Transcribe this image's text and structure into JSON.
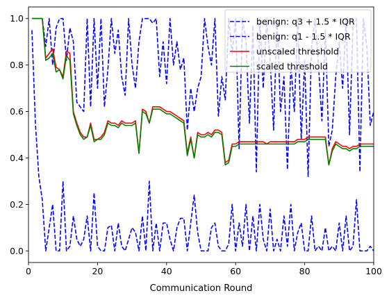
{
  "chart_data": {
    "type": "line",
    "title": "",
    "xlabel": "Communication Round",
    "ylabel": "",
    "xlim": [
      0,
      100
    ],
    "ylim": [
      -0.05,
      1.05
    ],
    "xticks": [
      0,
      20,
      40,
      60,
      80,
      100
    ],
    "yticks": [
      0.0,
      0.2,
      0.4,
      0.6,
      0.8,
      1.0
    ],
    "xtick_labels": [
      "0",
      "20",
      "40",
      "60",
      "80",
      "100"
    ],
    "ytick_labels": [
      "0.0",
      "0.2",
      "0.4",
      "0.6",
      "0.8",
      "1.0"
    ],
    "legend_position": "top-right",
    "grid": false,
    "x": [
      1,
      2,
      3,
      4,
      5,
      6,
      7,
      8,
      9,
      10,
      11,
      12,
      13,
      14,
      15,
      16,
      17,
      18,
      19,
      20,
      21,
      22,
      23,
      24,
      25,
      26,
      27,
      28,
      29,
      30,
      31,
      32,
      33,
      34,
      35,
      36,
      37,
      38,
      39,
      40,
      41,
      42,
      43,
      44,
      45,
      46,
      47,
      48,
      49,
      50,
      51,
      52,
      53,
      54,
      55,
      56,
      57,
      58,
      59,
      60,
      61,
      62,
      63,
      64,
      65,
      66,
      67,
      68,
      69,
      70,
      71,
      72,
      73,
      74,
      75,
      76,
      77,
      78,
      79,
      80,
      81,
      82,
      83,
      84,
      85,
      86,
      87,
      88,
      89,
      90,
      91,
      92,
      93,
      94,
      95,
      96,
      97,
      98,
      99,
      100
    ],
    "series": [
      {
        "name": "benign: q3 + 1.5 * IQR",
        "color": "#0000ff",
        "style": "dashed",
        "values": [
          1.0,
          1.0,
          1.0,
          1.0,
          0.88,
          1.0,
          0.8,
          0.96,
          1.0,
          1.0,
          0.82,
          0.96,
          0.9,
          0.64,
          0.62,
          0.6,
          1.0,
          0.62,
          1.0,
          0.7,
          1.0,
          0.62,
          0.78,
          1.0,
          0.85,
          0.95,
          0.75,
          0.67,
          1.0,
          0.8,
          0.7,
          0.9,
          1.0,
          1.0,
          1.0,
          0.98,
          1.0,
          0.75,
          0.9,
          0.72,
          1.0,
          0.8,
          0.9,
          0.78,
          0.83,
          0.52,
          0.7,
          0.6,
          0.7,
          0.75,
          1.0,
          0.88,
          0.8,
          1.0,
          0.58,
          0.75,
          0.65,
          1.0,
          0.85,
          1.0,
          0.44,
          1.0,
          0.9,
          0.55,
          0.97,
          0.34,
          1.0,
          0.7,
          1.0,
          0.82,
          0.52,
          1.0,
          0.6,
          0.75,
          0.35,
          0.8,
          0.6,
          1.0,
          0.48,
          0.82,
          0.32,
          0.88,
          1.0,
          0.8,
          0.56,
          0.95,
          0.45,
          0.52,
          0.75,
          0.9,
          0.7,
          1.0,
          0.5,
          0.98,
          1.0,
          0.34,
          1.0,
          0.88,
          0.54,
          0.6
        ]
      },
      {
        "name": "benign: q1 - 1.5 * IQR",
        "color": "#0000ff",
        "style": "dashed",
        "values": [
          0.95,
          0.55,
          0.32,
          0.22,
          0.0,
          0.1,
          0.2,
          0.0,
          0.0,
          0.3,
          0.0,
          0.02,
          0.15,
          0.05,
          0.02,
          0.05,
          0.15,
          0.0,
          0.25,
          0.02,
          0.0,
          0.0,
          0.1,
          0.11,
          0.0,
          0.12,
          0.02,
          0.0,
          0.05,
          0.1,
          0.08,
          0.0,
          0.15,
          0.0,
          0.3,
          0.0,
          0.12,
          0.0,
          0.12,
          0.12,
          0.05,
          0.0,
          0.1,
          0.14,
          0.14,
          0.0,
          0.12,
          0.24,
          0.08,
          0.0,
          0.0,
          0.0,
          0.1,
          0.12,
          0.02,
          0.0,
          0.0,
          0.03,
          0.2,
          0.0,
          0.12,
          0.02,
          0.2,
          0.0,
          0.15,
          0.0,
          0.2,
          0.05,
          0.0,
          0.18,
          0.0,
          0.05,
          0.0,
          0.15,
          0.02,
          0.2,
          0.0,
          0.08,
          0.12,
          0.0,
          0.0,
          0.15,
          0.0,
          0.02,
          0.0,
          0.1,
          0.0,
          0.02,
          0.0,
          0.12,
          0.0,
          0.15,
          0.0,
          0.02,
          0.22,
          0.0,
          0.0,
          0.0,
          0.02,
          0.0
        ]
      },
      {
        "name": "unscaled threshold",
        "color": "#ff0000",
        "style": "solid",
        "values": [
          1.0,
          1.0,
          1.0,
          1.0,
          0.83,
          0.85,
          0.87,
          0.79,
          0.78,
          0.75,
          0.86,
          0.85,
          0.6,
          0.55,
          0.51,
          0.49,
          0.49,
          0.55,
          0.48,
          0.48,
          0.49,
          0.51,
          0.56,
          0.55,
          0.55,
          0.54,
          0.56,
          0.55,
          0.55,
          0.55,
          0.56,
          0.42,
          0.61,
          0.6,
          0.55,
          0.62,
          0.62,
          0.62,
          0.61,
          0.6,
          0.6,
          0.59,
          0.58,
          0.57,
          0.56,
          0.42,
          0.49,
          0.4,
          0.51,
          0.5,
          0.5,
          0.51,
          0.5,
          0.52,
          0.52,
          0.51,
          0.38,
          0.39,
          0.46,
          0.46,
          0.47,
          0.47,
          0.47,
          0.47,
          0.47,
          0.47,
          0.47,
          0.47,
          0.46,
          0.47,
          0.47,
          0.47,
          0.47,
          0.47,
          0.47,
          0.47,
          0.47,
          0.48,
          0.48,
          0.48,
          0.49,
          0.49,
          0.49,
          0.49,
          0.49,
          0.49,
          0.37,
          0.44,
          0.47,
          0.46,
          0.45,
          0.45,
          0.44,
          0.45,
          0.45,
          0.46,
          0.46,
          0.46,
          0.46,
          0.46
        ]
      },
      {
        "name": "scaled threshold",
        "color": "#008000",
        "style": "solid",
        "values": [
          1.0,
          1.0,
          1.0,
          1.0,
          0.82,
          0.83,
          0.85,
          0.77,
          0.78,
          0.74,
          0.84,
          0.82,
          0.59,
          0.54,
          0.5,
          0.48,
          0.49,
          0.54,
          0.47,
          0.48,
          0.48,
          0.5,
          0.55,
          0.54,
          0.54,
          0.53,
          0.55,
          0.54,
          0.54,
          0.54,
          0.55,
          0.42,
          0.6,
          0.59,
          0.55,
          0.61,
          0.61,
          0.61,
          0.6,
          0.59,
          0.59,
          0.58,
          0.57,
          0.56,
          0.55,
          0.41,
          0.48,
          0.4,
          0.5,
          0.49,
          0.49,
          0.5,
          0.49,
          0.51,
          0.51,
          0.5,
          0.37,
          0.38,
          0.45,
          0.45,
          0.46,
          0.46,
          0.46,
          0.46,
          0.46,
          0.46,
          0.46,
          0.46,
          0.46,
          0.46,
          0.46,
          0.46,
          0.46,
          0.46,
          0.46,
          0.46,
          0.46,
          0.47,
          0.47,
          0.47,
          0.48,
          0.48,
          0.48,
          0.48,
          0.48,
          0.48,
          0.37,
          0.43,
          0.46,
          0.45,
          0.44,
          0.44,
          0.43,
          0.44,
          0.44,
          0.45,
          0.45,
          0.45,
          0.45,
          0.45
        ]
      }
    ]
  }
}
